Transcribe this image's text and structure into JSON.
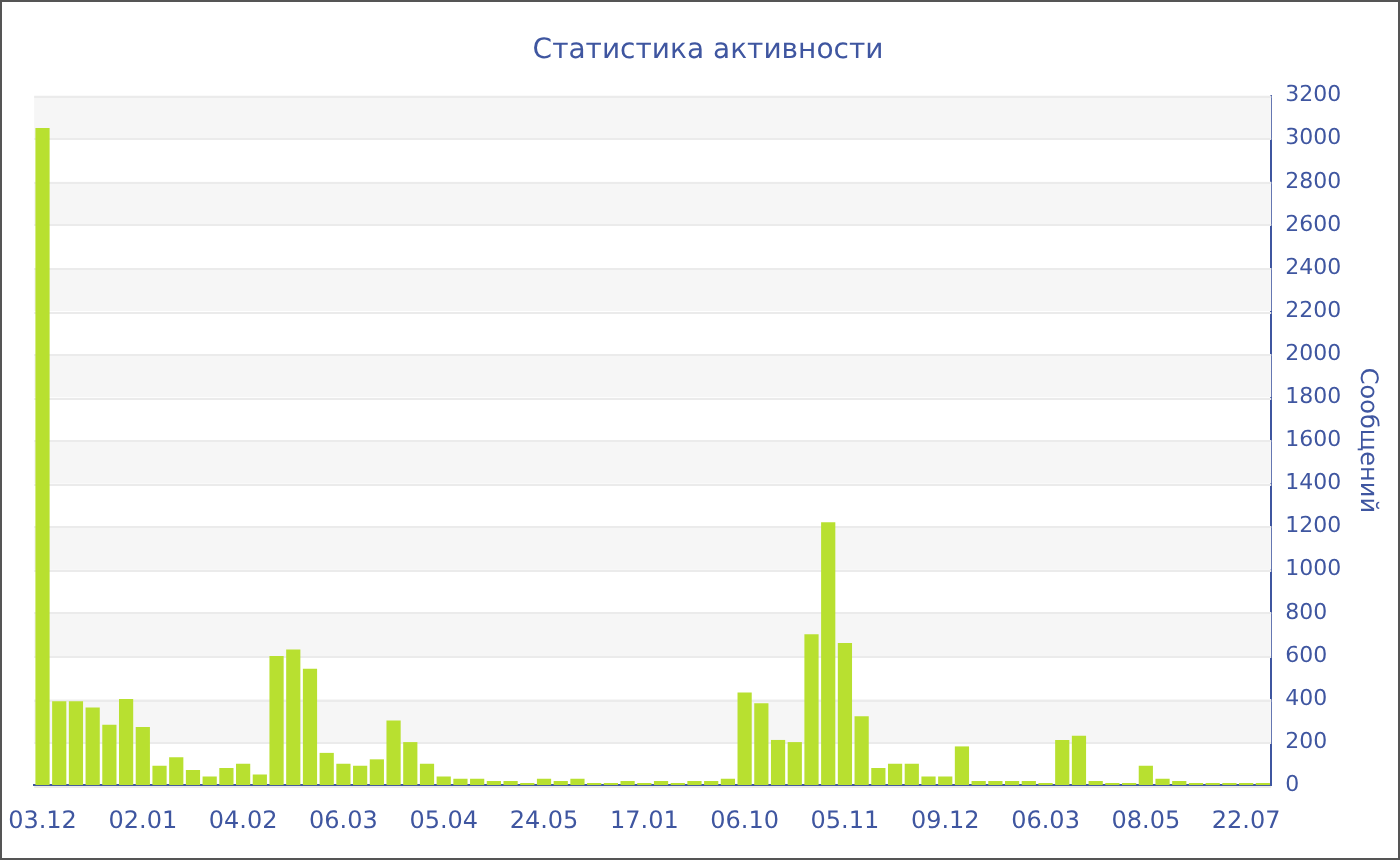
{
  "chart_data": {
    "type": "bar",
    "title": "Статистика активности",
    "ylabel": "Сообщений",
    "categories": [
      "03.12",
      null,
      null,
      null,
      null,
      null,
      "02.01",
      null,
      null,
      null,
      null,
      null,
      "04.02",
      null,
      null,
      null,
      null,
      null,
      "06.03",
      null,
      null,
      null,
      null,
      null,
      "05.04",
      null,
      null,
      null,
      null,
      null,
      "24.05",
      null,
      null,
      null,
      null,
      null,
      "17.01",
      null,
      null,
      null,
      null,
      null,
      "06.10",
      null,
      null,
      null,
      null,
      null,
      "05.11",
      null,
      null,
      null,
      null,
      null,
      "09.12",
      null,
      null,
      null,
      null,
      null,
      "06.03",
      null,
      null,
      null,
      null,
      null,
      "08.05",
      null,
      null,
      null,
      null,
      null,
      "22.07",
      null
    ],
    "values": [
      3050,
      390,
      390,
      360,
      280,
      400,
      270,
      90,
      130,
      70,
      40,
      80,
      100,
      50,
      600,
      630,
      540,
      150,
      100,
      90,
      120,
      300,
      200,
      100,
      40,
      30,
      30,
      20,
      20,
      10,
      30,
      20,
      30,
      10,
      10,
      20,
      10,
      20,
      10,
      20,
      20,
      30,
      430,
      380,
      210,
      200,
      700,
      1220,
      660,
      320,
      80,
      100,
      100,
      40,
      40,
      180,
      20,
      20,
      20,
      20,
      10,
      210,
      230,
      20,
      10,
      10,
      90,
      30,
      20,
      10,
      10,
      10,
      10,
      10
    ],
    "color": "#b8e030",
    "ylim": [
      0,
      3200
    ],
    "yticks": [
      0,
      200,
      400,
      600,
      800,
      1000,
      1200,
      1400,
      1600,
      1800,
      2000,
      2200,
      2400,
      2600,
      2800,
      3000,
      3200
    ],
    "grid": "y"
  }
}
